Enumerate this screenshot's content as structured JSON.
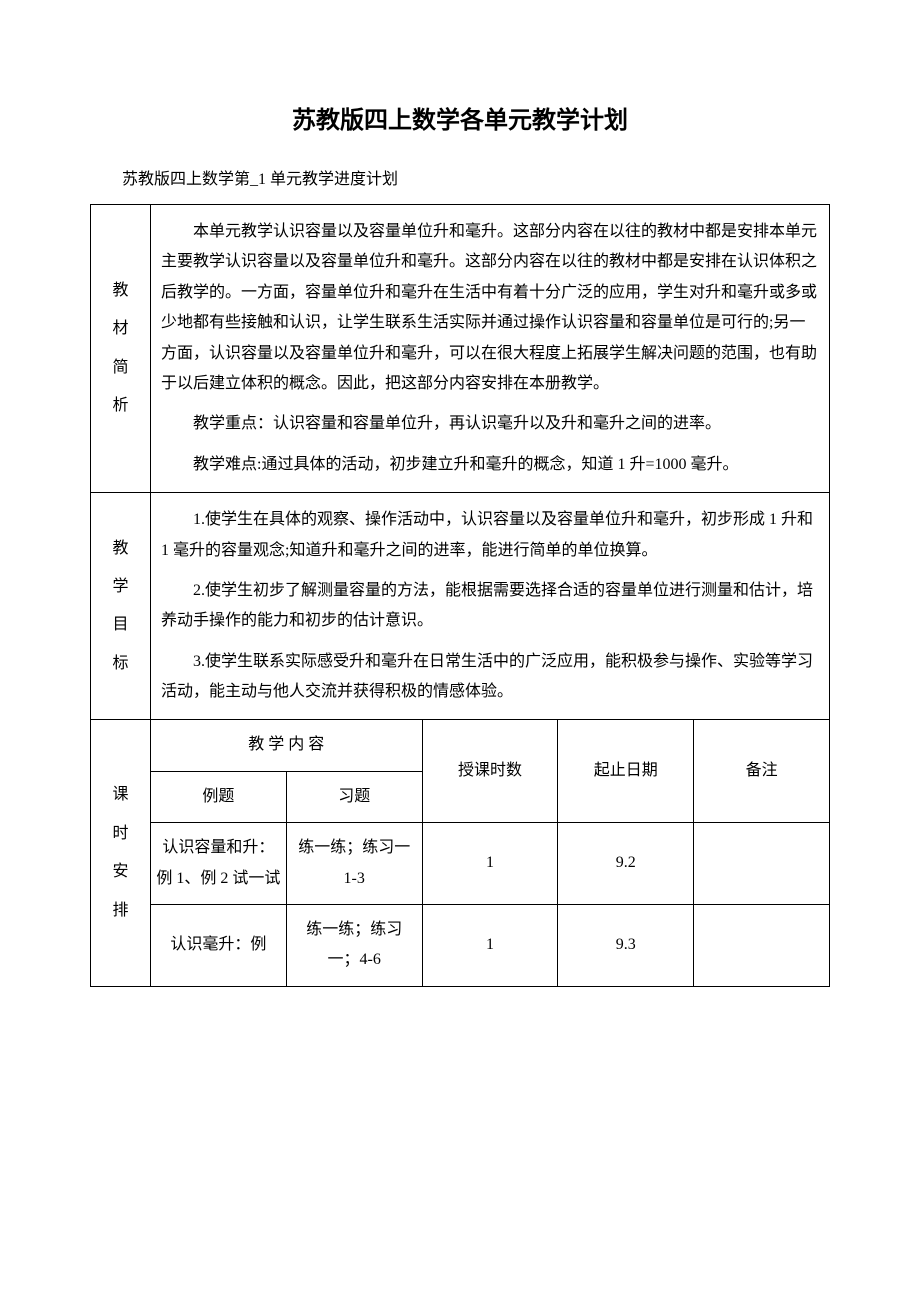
{
  "title": "苏教版四上数学各单元教学计划",
  "subtitle": "苏教版四上数学第_1 单元教学进度计划",
  "section1": {
    "label": [
      "教",
      "材",
      "简",
      "析"
    ],
    "p1": "本单元教学认识容量以及容量单位升和毫升。这部分内容在以往的教材中都是安排本单元主要教学认识容量以及容量单位升和毫升。这部分内容在以往的教材中都是安排在认识体积之后教学的。一方面，容量单位升和毫升在生活中有着十分广泛的应用，学生对升和毫升或多或少地都有些接触和认识，让学生联系生活实际并通过操作认识容量和容量单位是可行的;另一方面，认识容量以及容量单位升和毫升，可以在很大程度上拓展学生解决问题的范围，也有助于以后建立体积的概念。因此，把这部分内容安排在本册教学。",
    "p2": "教学重点：认识容量和容量单位升，再认识毫升以及升和毫升之间的进率。",
    "p3": "教学难点:通过具体的活动，初步建立升和毫升的概念，知道 1 升=1000 毫升。"
  },
  "section2": {
    "label": [
      "教",
      "学",
      "目",
      "标"
    ],
    "p1": "1.使学生在具体的观察、操作活动中，认识容量以及容量单位升和毫升，初步形成 1 升和 1 毫升的容量观念;知道升和毫升之间的进率，能进行简单的单位换算。",
    "p2": "2.使学生初步了解测量容量的方法，能根据需要选择合适的容量单位进行测量和估计，培养动手操作的能力和初步的估计意识。",
    "p3": "3.使学生联系实际感受升和毫升在日常生活中的广泛应用，能积极参与操作、实验等学习活动，能主动与他人交流并获得积极的情感体验。"
  },
  "section3": {
    "label": [
      "课",
      "时",
      "安",
      "排"
    ],
    "headers": {
      "content": "教 学 内 容",
      "example": "例题",
      "exercise": "习题",
      "hours": "授课时数",
      "date": "起止日期",
      "note": "备注"
    },
    "rows": [
      {
        "example": "认识容量和升：例 1、例 2 试一试",
        "exercise": "练一练；练习一 1-3",
        "hours": "1",
        "date": "9.2",
        "note": ""
      },
      {
        "example": "认识毫升：例",
        "exercise": "练一练；练习一；4-6",
        "hours": "1",
        "date": "9.3",
        "note": ""
      }
    ]
  }
}
